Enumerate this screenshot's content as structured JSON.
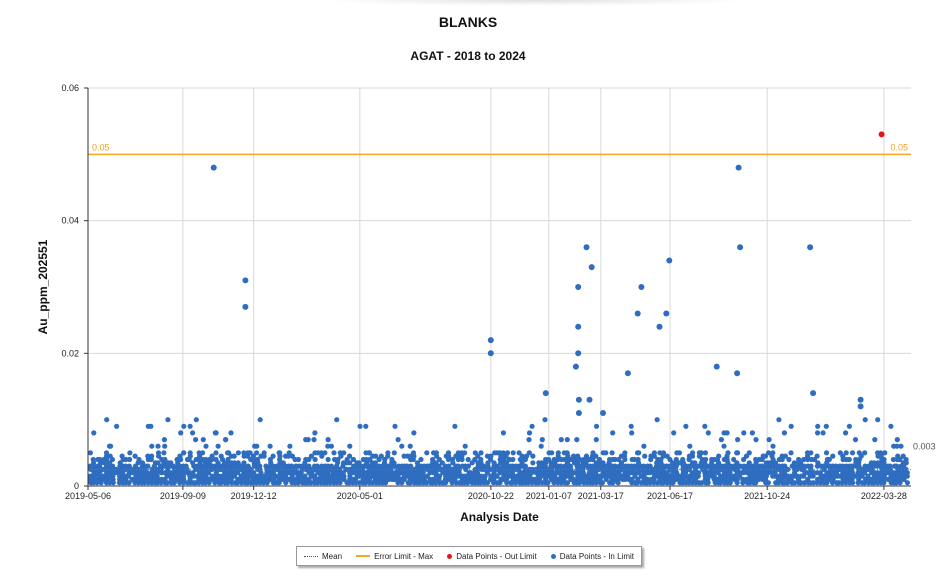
{
  "chart_data": {
    "type": "scatter",
    "title": "BLANKS",
    "subtitle": "AGAT - 2018 to 2024",
    "xlabel": "Analysis Date",
    "ylabel": "Au_ppm_202551",
    "xlim": [
      "2019-05-06",
      "2022-05-03"
    ],
    "ylim": [
      0,
      0.06
    ],
    "yticks": [
      "0",
      "0.02",
      "0.04",
      "0.06"
    ],
    "xticks": [
      "2019-05-06",
      "2019-09-09",
      "2019-12-12",
      "2020-05-01",
      "2020-10-22",
      "2021-01-07",
      "2021-03-17",
      "2021-06-17",
      "2021-10-24",
      "2022-03-28"
    ],
    "grid": true,
    "error_limit": {
      "value": 0.05,
      "label_left": "0.05",
      "label_right": "0.05",
      "color": "#f5a623"
    },
    "mean": {
      "value": 0.0025,
      "label": "0.003"
    },
    "colors": {
      "in_limit": "#2e6dbf",
      "out_limit": "#e8141a",
      "grid": "#d9d9d9"
    },
    "series": [
      {
        "name": "Data Points - Out Limit",
        "points": [
          {
            "x": "2022-03-25",
            "y": 0.053
          }
        ]
      },
      {
        "name": "Data Points - In Limit",
        "baseline_density": "dense band of results between 0.001 and 0.010 across the full date range",
        "points": [
          {
            "x": "2019-10-20",
            "y": 0.048
          },
          {
            "x": "2019-12-01",
            "y": 0.031
          },
          {
            "x": "2019-12-01",
            "y": 0.027
          },
          {
            "x": "2020-10-22",
            "y": 0.022
          },
          {
            "x": "2020-10-22",
            "y": 0.02
          },
          {
            "x": "2021-01-03",
            "y": 0.014
          },
          {
            "x": "2021-02-12",
            "y": 0.018
          },
          {
            "x": "2021-02-15",
            "y": 0.03
          },
          {
            "x": "2021-02-15",
            "y": 0.024
          },
          {
            "x": "2021-02-15",
            "y": 0.02
          },
          {
            "x": "2021-02-16",
            "y": 0.013
          },
          {
            "x": "2021-02-16",
            "y": 0.011
          },
          {
            "x": "2021-02-26",
            "y": 0.036
          },
          {
            "x": "2021-03-05",
            "y": 0.033
          },
          {
            "x": "2021-03-02",
            "y": 0.013
          },
          {
            "x": "2021-03-20",
            "y": 0.011
          },
          {
            "x": "2021-04-22",
            "y": 0.017
          },
          {
            "x": "2021-05-05",
            "y": 0.026
          },
          {
            "x": "2021-05-10",
            "y": 0.03
          },
          {
            "x": "2021-06-03",
            "y": 0.024
          },
          {
            "x": "2021-06-12",
            "y": 0.026
          },
          {
            "x": "2021-06-16",
            "y": 0.034
          },
          {
            "x": "2021-08-18",
            "y": 0.018
          },
          {
            "x": "2021-09-14",
            "y": 0.017
          },
          {
            "x": "2021-09-16",
            "y": 0.048
          },
          {
            "x": "2021-09-18",
            "y": 0.036
          },
          {
            "x": "2021-12-20",
            "y": 0.036
          },
          {
            "x": "2021-12-24",
            "y": 0.014
          },
          {
            "x": "2022-02-25",
            "y": 0.013
          },
          {
            "x": "2022-02-25",
            "y": 0.012
          }
        ]
      }
    ],
    "legend": {
      "position": "bottom-center",
      "items": [
        "Mean",
        "Error Limit - Max",
        "Data Points - Out Limit",
        "Data Points - In Limit"
      ]
    }
  }
}
